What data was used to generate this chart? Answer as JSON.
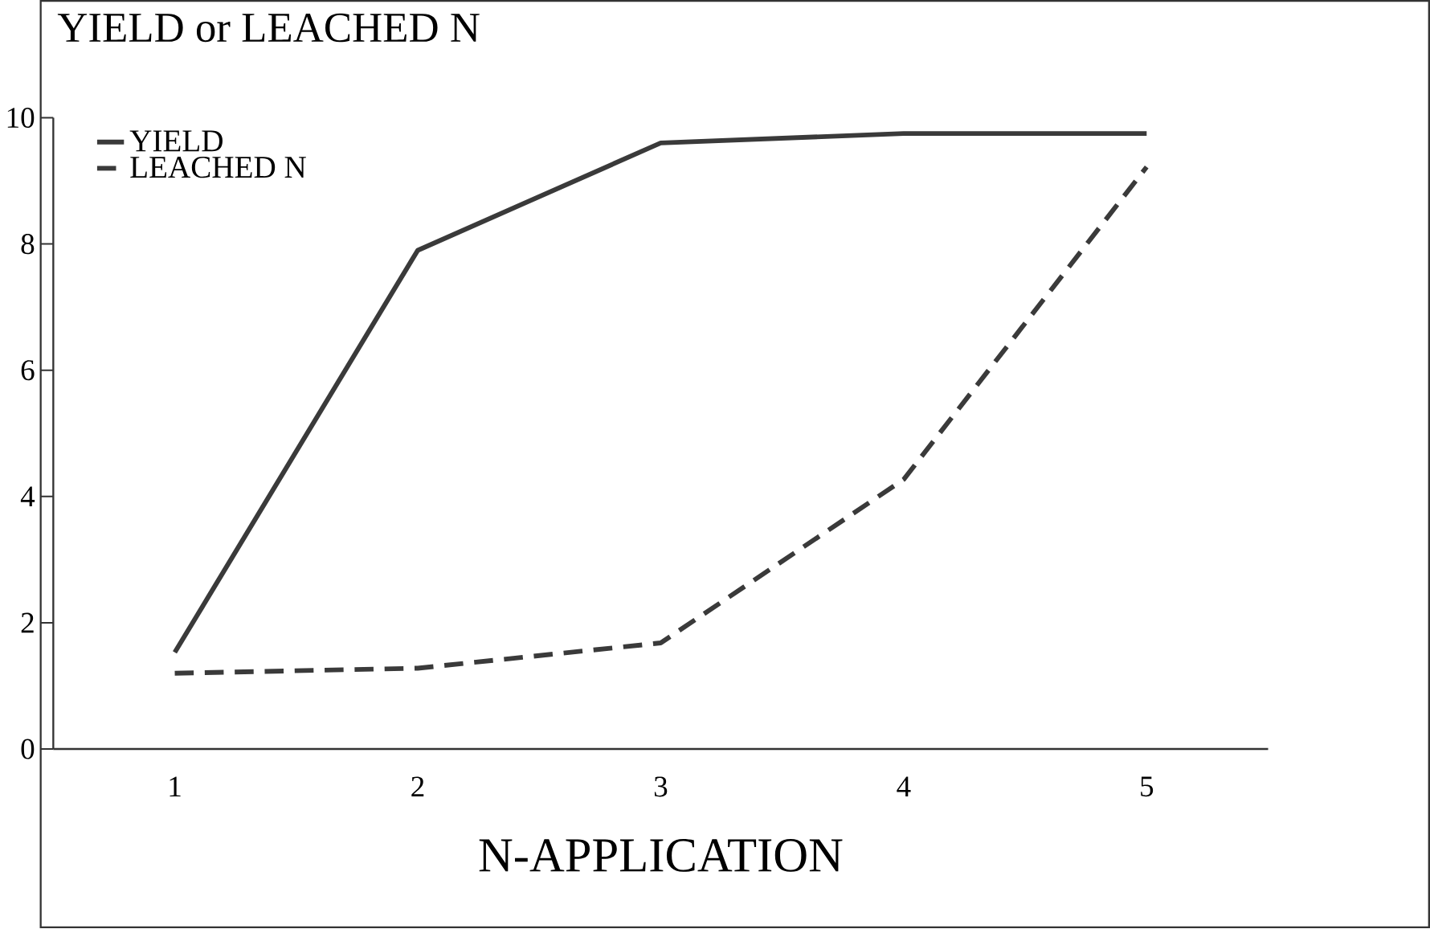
{
  "chart_data": {
    "type": "line",
    "title": "YIELD or LEACHED N",
    "xlabel": "N-APPLICATION",
    "categories": [
      "1",
      "2",
      "3",
      "4",
      "5"
    ],
    "series": [
      {
        "name": "YIELD",
        "color": "#3a3a3a",
        "line_style": "solid",
        "values": [
          1.53,
          7.9,
          9.6,
          9.75,
          9.75
        ]
      },
      {
        "name": "LEACHED N",
        "color": "#3a3a3a",
        "line_style": "dashed",
        "values": [
          1.2,
          1.28,
          1.68,
          4.27,
          9.22
        ]
      }
    ],
    "ylim": [
      0,
      10
    ],
    "yticks": [
      0,
      2,
      4,
      6,
      8,
      10
    ],
    "legend": "top left",
    "marker": "none"
  }
}
